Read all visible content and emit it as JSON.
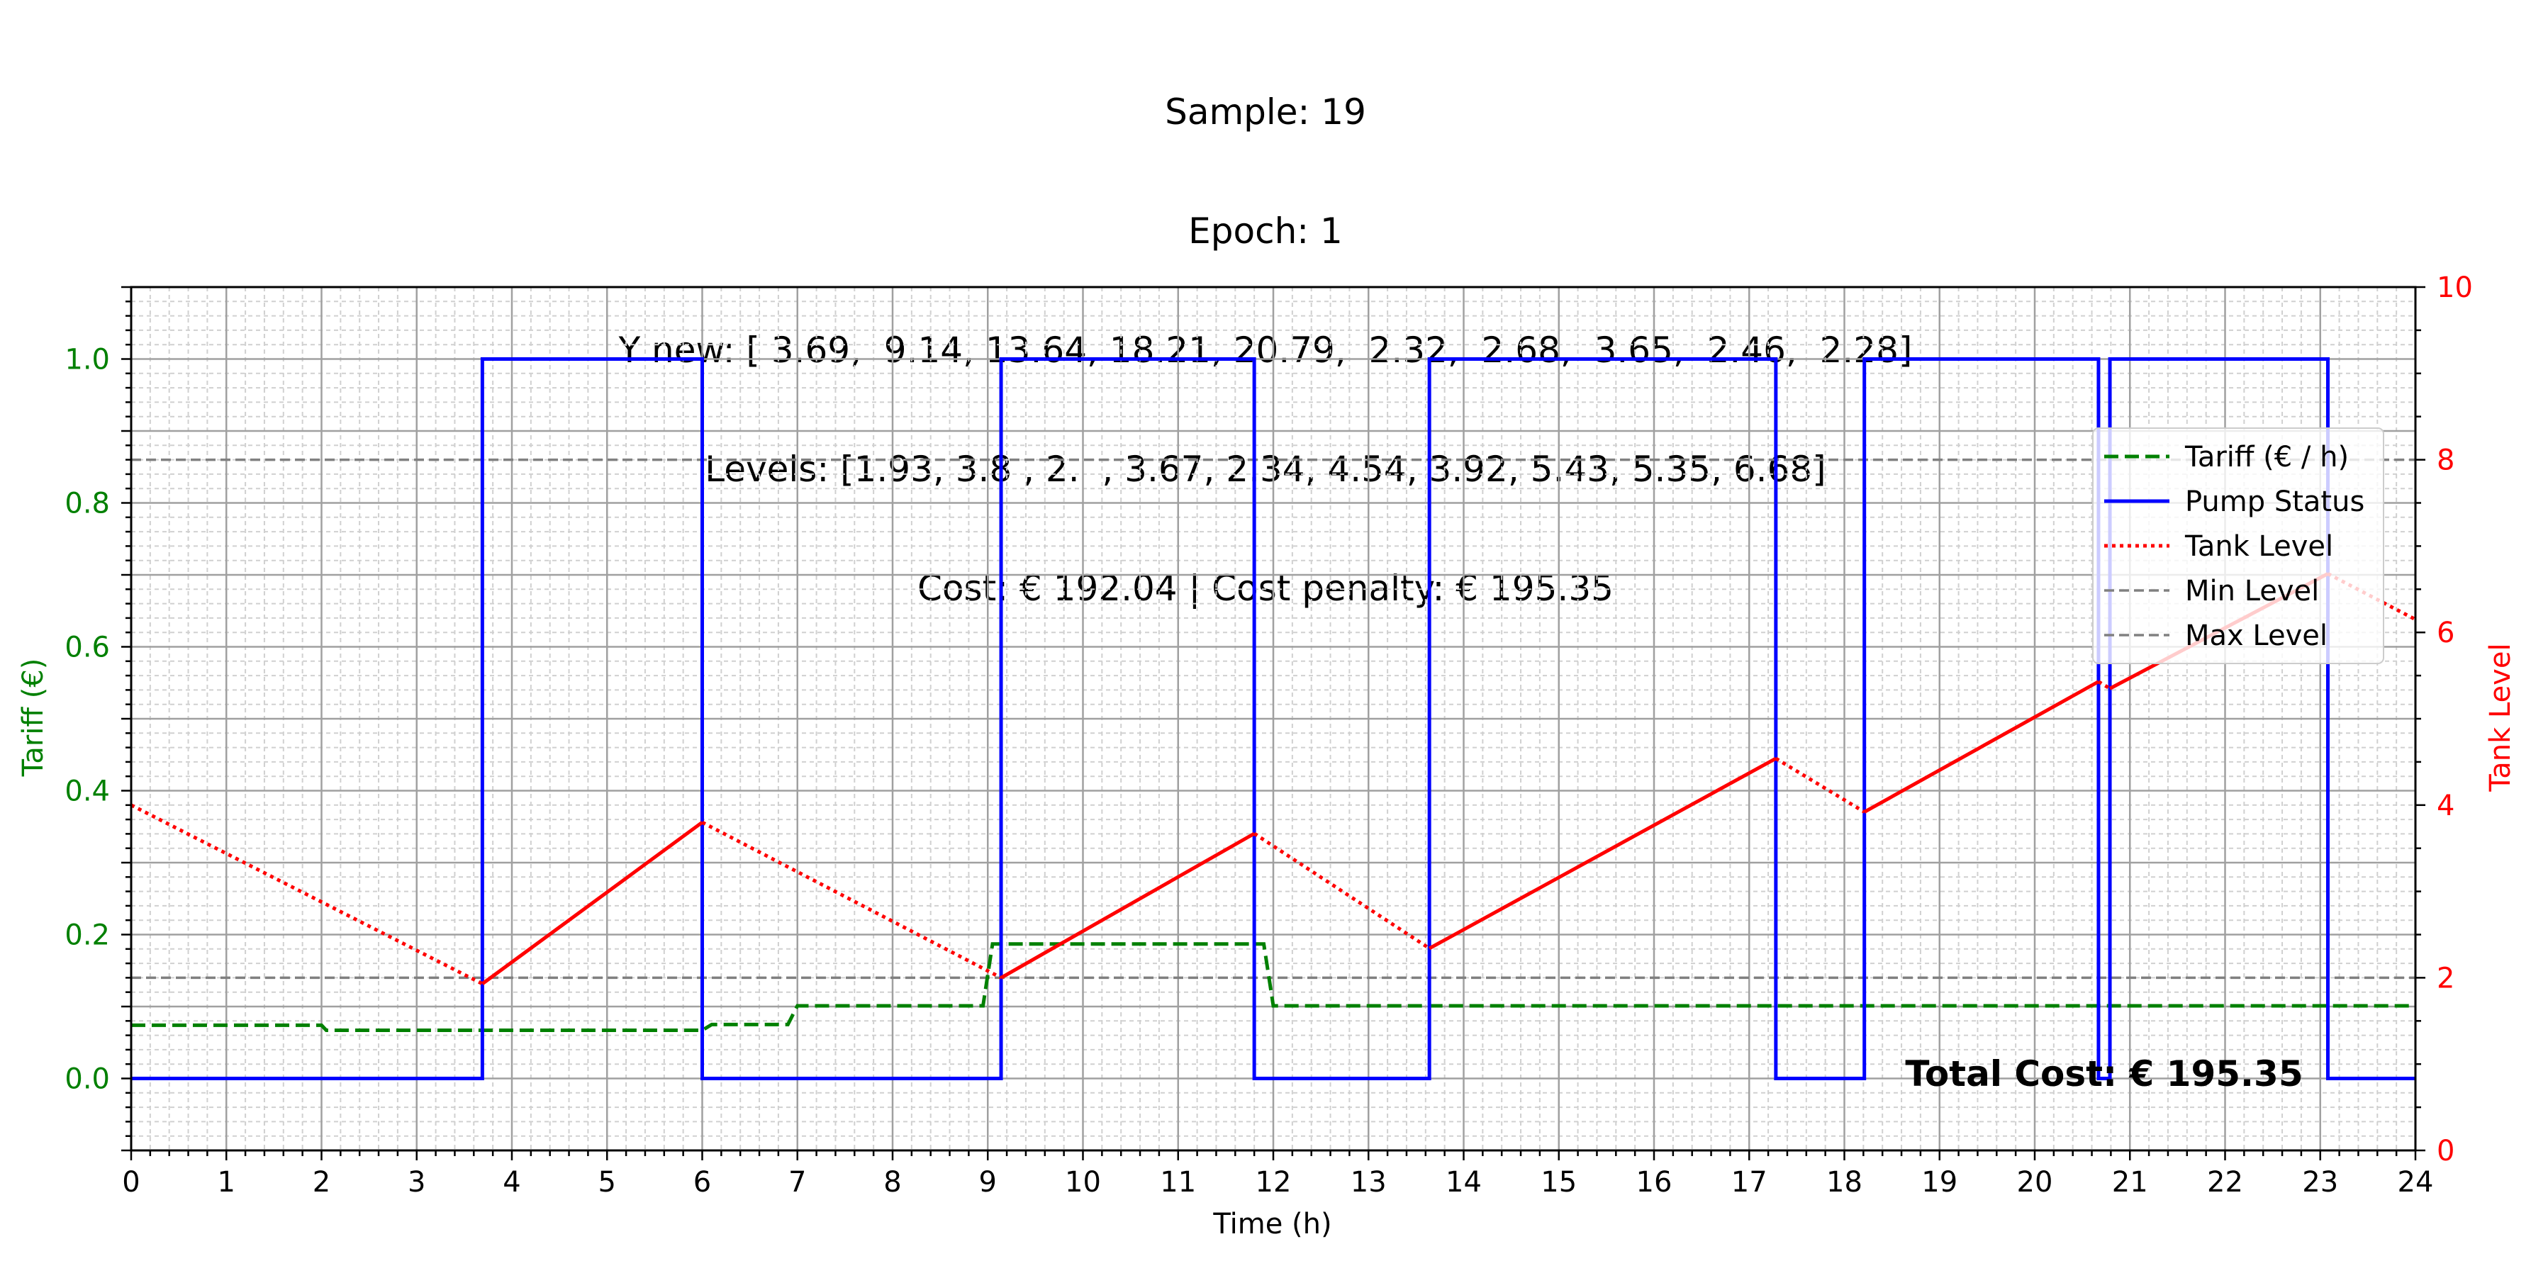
{
  "title_lines": [
    "Sample: 19",
    "Epoch: 1",
    "Y new: [ 3.69,  9.14, 13.64, 18.21, 20.79,  2.32,  2.68,  3.65,  2.46,  2.28]",
    "Levels: [1.93, 3.8 , 2.  , 3.67, 2.34, 4.54, 3.92, 5.43, 5.35, 6.68]",
    "Cost: € 192.04 | Cost penalty: € 195.35"
  ],
  "colors": {
    "tariff": "#008000",
    "pump": "#0000ff",
    "tank": "#ff0000",
    "limits": "#808080",
    "grid_major": "#a0a0a0",
    "grid_minor": "#d0d0d0"
  },
  "chart_data": {
    "type": "line",
    "xlabel": "Time (h)",
    "ylabel_left": "Tariff (€)",
    "ylabel_right": "Tank Level",
    "xlim": [
      0,
      24
    ],
    "ylim_left": [
      -0.1,
      1.1
    ],
    "ylim_right": [
      0,
      10
    ],
    "x_ticks": [
      0,
      1,
      2,
      3,
      4,
      5,
      6,
      7,
      8,
      9,
      10,
      11,
      12,
      13,
      14,
      15,
      16,
      17,
      18,
      19,
      20,
      21,
      22,
      23,
      24
    ],
    "y_ticks_left": [
      0.0,
      0.2,
      0.4,
      0.6,
      0.8,
      1.0
    ],
    "y_ticks_left_labels": [
      "0.0",
      "0.2",
      "0.4",
      "0.6",
      "0.8",
      "1.0"
    ],
    "y_ticks_right": [
      0,
      2,
      4,
      6,
      8,
      10
    ],
    "grid": true,
    "legend_position": "upper right",
    "series": [
      {
        "name": "Tariff (€ / h)",
        "axis": "left",
        "style": "dashed",
        "x": [
          0,
          2,
          2.05,
          6,
          6.1,
          6.9,
          7,
          8.95,
          9.05,
          11.9,
          12,
          24
        ],
        "y": [
          0.074,
          0.074,
          0.067,
          0.067,
          0.075,
          0.075,
          0.101,
          0.101,
          0.187,
          0.187,
          0.101,
          0.101
        ]
      },
      {
        "name": "Pump Status",
        "axis": "left",
        "style": "solid",
        "x": [
          0,
          3.69,
          3.69,
          6,
          6,
          9.14,
          9.14,
          11.8,
          11.8,
          13.64,
          13.64,
          17.28,
          17.28,
          18.21,
          18.21,
          20.67,
          20.67,
          20.79,
          20.79,
          23.08,
          23.08,
          24
        ],
        "y": [
          0,
          0,
          1,
          1,
          0,
          0,
          1,
          1,
          0,
          0,
          1,
          1,
          0,
          0,
          1,
          1,
          0,
          0,
          1,
          1,
          0,
          0
        ]
      },
      {
        "name": "Tank Level",
        "axis": "right",
        "style": "dotted+solid",
        "points": [
          [
            0,
            4.0
          ],
          [
            3.69,
            1.93
          ],
          [
            6,
            3.8
          ],
          [
            9.14,
            2.0
          ],
          [
            11.8,
            3.67
          ],
          [
            13.64,
            2.34
          ],
          [
            17.28,
            4.54
          ],
          [
            18.21,
            3.92
          ],
          [
            20.67,
            5.43
          ],
          [
            20.79,
            5.35
          ],
          [
            23.08,
            6.68
          ],
          [
            24,
            6.15
          ]
        ],
        "segment_styles": [
          "dotted",
          "solid",
          "dotted",
          "solid",
          "dotted",
          "solid",
          "dotted",
          "solid",
          "dotted",
          "solid",
          "dotted"
        ]
      },
      {
        "name": "Min Level",
        "axis": "right",
        "style": "dashed",
        "y": 2.0
      },
      {
        "name": "Max Level",
        "axis": "right",
        "style": "dashed",
        "y": 8.0
      }
    ],
    "annotation": "Total Cost: € 195.35"
  }
}
